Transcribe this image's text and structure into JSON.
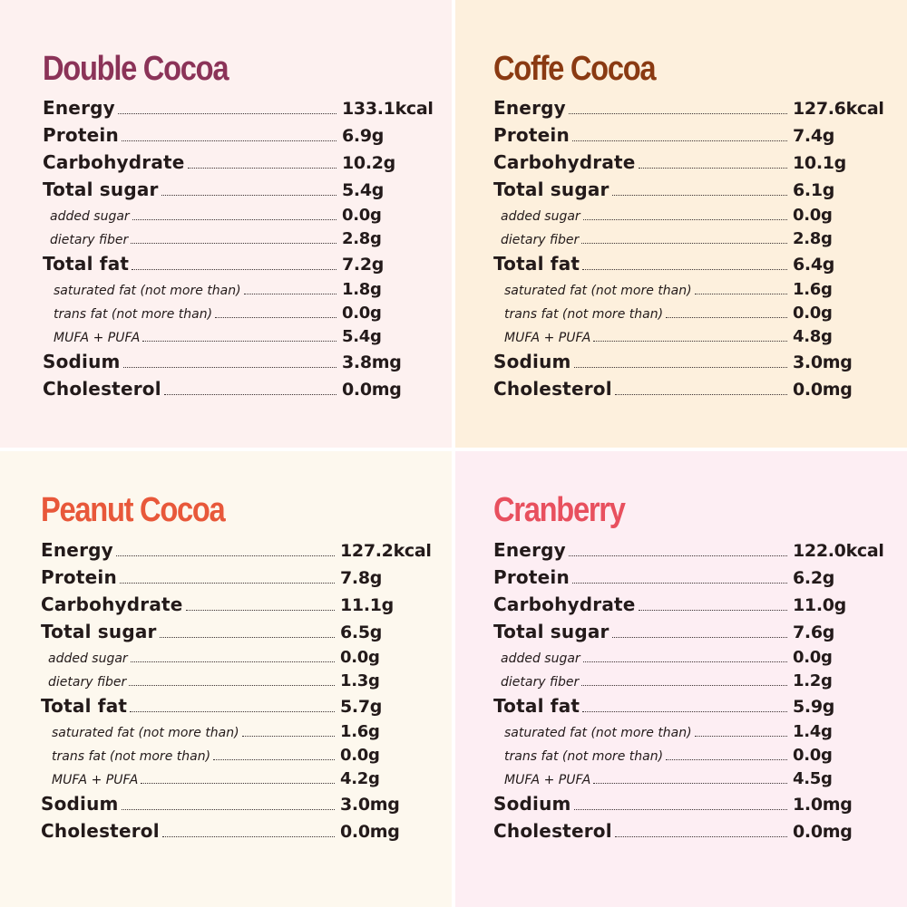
{
  "colors": {
    "double_cocoa": "#8b3358",
    "coffe_cocoa": "#8a3a12",
    "peanut_cocoa": "#e8583a",
    "cranberry": "#e8505e"
  },
  "labels": [
    {
      "text": "Energy",
      "level": "main"
    },
    {
      "text": "Protein",
      "level": "main"
    },
    {
      "text": "Carbohydrate",
      "level": "main"
    },
    {
      "text": "Total sugar",
      "level": "main"
    },
    {
      "text": "added sugar",
      "level": "sub"
    },
    {
      "text": "dietary fiber",
      "level": "sub"
    },
    {
      "text": "Total fat",
      "level": "main"
    },
    {
      "text": "saturated fat (not more than)",
      "level": "sub2"
    },
    {
      "text": "trans fat (not more than)",
      "level": "sub2"
    },
    {
      "text": "MUFA + PUFA",
      "level": "sub2"
    },
    {
      "text": "Sodium",
      "level": "main"
    },
    {
      "text": "Cholesterol",
      "level": "main"
    }
  ],
  "products": [
    {
      "name": "Double Cocoa",
      "color": "#8b3358",
      "values": [
        "133.1kcal",
        "6.9g",
        "10.2g",
        "5.4g",
        "0.0g",
        "2.8g",
        "7.2g",
        "1.8g",
        "0.0g",
        "5.4g",
        "3.8mg",
        "0.0mg"
      ]
    },
    {
      "name": "Coffe Cocoa",
      "color": "#8a3a12",
      "values": [
        "127.6kcal",
        "7.4g",
        "10.1g",
        "6.1g",
        "0.0g",
        "2.8g",
        "6.4g",
        "1.6g",
        "0.0g",
        "4.8g",
        "3.0mg",
        "0.0mg"
      ]
    },
    {
      "name": "Peanut Cocoa",
      "color": "#e8583a",
      "values": [
        "127.2kcal",
        "7.8g",
        "11.1g",
        "6.5g",
        "0.0g",
        "1.3g",
        "5.7g",
        "1.6g",
        "0.0g",
        "4.2g",
        "3.0mg",
        "0.0mg"
      ]
    },
    {
      "name": "Cranberry",
      "color": "#e8505e",
      "values": [
        "122.0kcal",
        "6.2g",
        "11.0g",
        "7.6g",
        "0.0g",
        "1.2g",
        "5.9g",
        "1.4g",
        "0.0g",
        "4.5g",
        "1.0mg",
        "0.0mg"
      ]
    }
  ]
}
